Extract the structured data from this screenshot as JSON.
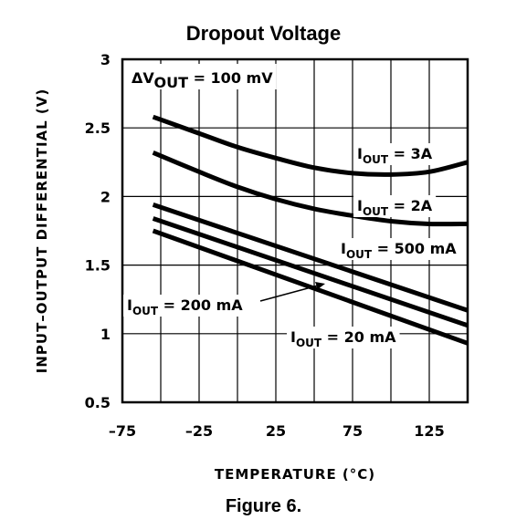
{
  "figure_label": "Figure 6.",
  "chart_data": {
    "type": "line",
    "title": "Dropout Voltage",
    "xlabel": "TEMPERATURE (°C)",
    "ylabel": "INPUT–OUTPUT DIFFERENTIAL (V)",
    "xlim": [
      -75,
      150
    ],
    "ylim": [
      0.5,
      3
    ],
    "xticks": [
      "–75",
      "–25",
      "25",
      "75",
      "125"
    ],
    "yticks": [
      "0.5",
      "1",
      "1.5",
      "2",
      "2.5",
      "3"
    ],
    "grid": true,
    "condition": {
      "prefix": "ΔV",
      "sub": "OUT",
      "suffix": " = 100 mV"
    },
    "series": [
      {
        "name": "I OUT = 3A",
        "label_main": "I",
        "label_sub": "OUT",
        "label_rest": " = 3A",
        "x": [
          -55,
          -25,
          0,
          25,
          50,
          75,
          100,
          125,
          150
        ],
        "y": [
          2.58,
          2.46,
          2.36,
          2.28,
          2.21,
          2.17,
          2.16,
          2.18,
          2.25
        ]
      },
      {
        "name": "I OUT = 2A",
        "label_main": "I",
        "label_sub": "OUT",
        "label_rest": " = 2A",
        "x": [
          -55,
          -25,
          0,
          25,
          50,
          75,
          100,
          125,
          150
        ],
        "y": [
          2.32,
          2.18,
          2.07,
          1.98,
          1.91,
          1.86,
          1.82,
          1.8,
          1.8
        ]
      },
      {
        "name": "I OUT = 500 mA",
        "label_main": "I",
        "label_sub": "OUT",
        "label_rest": " = 500 mA",
        "x": [
          -55,
          150
        ],
        "y": [
          1.94,
          1.17
        ]
      },
      {
        "name": "I OUT = 200 mA",
        "label_main": "I",
        "label_sub": "OUT",
        "label_rest": " = 200 mA",
        "x": [
          -55,
          150
        ],
        "y": [
          1.84,
          1.06
        ]
      },
      {
        "name": "I OUT = 20 mA",
        "label_main": "I",
        "label_sub": "OUT",
        "label_rest": " = 20 mA",
        "x": [
          -55,
          150
        ],
        "y": [
          1.75,
          0.93
        ]
      }
    ]
  }
}
